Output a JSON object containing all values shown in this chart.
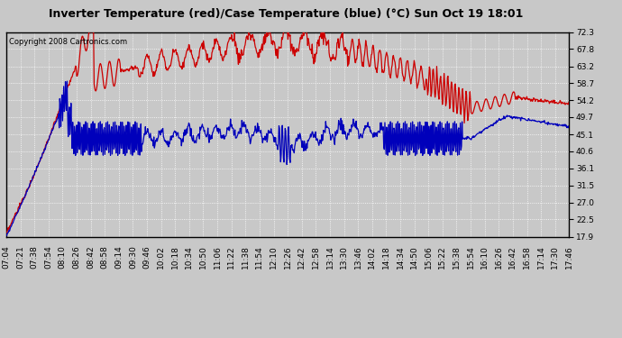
{
  "title": "Inverter Temperature (red)/Case Temperature (blue) (°C) Sun Oct 19 18:01",
  "copyright": "Copyright 2008 Cartronics.com",
  "ylim": [
    17.9,
    72.3
  ],
  "yticks": [
    17.9,
    22.5,
    27.0,
    31.5,
    36.1,
    40.6,
    45.1,
    49.7,
    54.2,
    58.7,
    63.2,
    67.8,
    72.3
  ],
  "bg_color": "#c8c8c8",
  "plot_bg_color": "#c8c8c8",
  "grid_color": "#ffffff",
  "red_color": "#cc0000",
  "blue_color": "#0000bb",
  "xtick_labels": [
    "07:04",
    "07:21",
    "07:38",
    "07:54",
    "08:10",
    "08:26",
    "08:42",
    "08:58",
    "09:14",
    "09:30",
    "09:46",
    "10:02",
    "10:18",
    "10:34",
    "10:50",
    "11:06",
    "11:22",
    "11:38",
    "11:54",
    "12:10",
    "12:26",
    "12:42",
    "12:58",
    "13:14",
    "13:30",
    "13:46",
    "14:02",
    "14:18",
    "14:34",
    "14:50",
    "15:06",
    "15:22",
    "15:38",
    "15:54",
    "16:10",
    "16:26",
    "16:42",
    "16:58",
    "17:14",
    "17:30",
    "17:46"
  ],
  "title_fontsize": 9,
  "copyright_fontsize": 6,
  "tick_fontsize": 6.5
}
